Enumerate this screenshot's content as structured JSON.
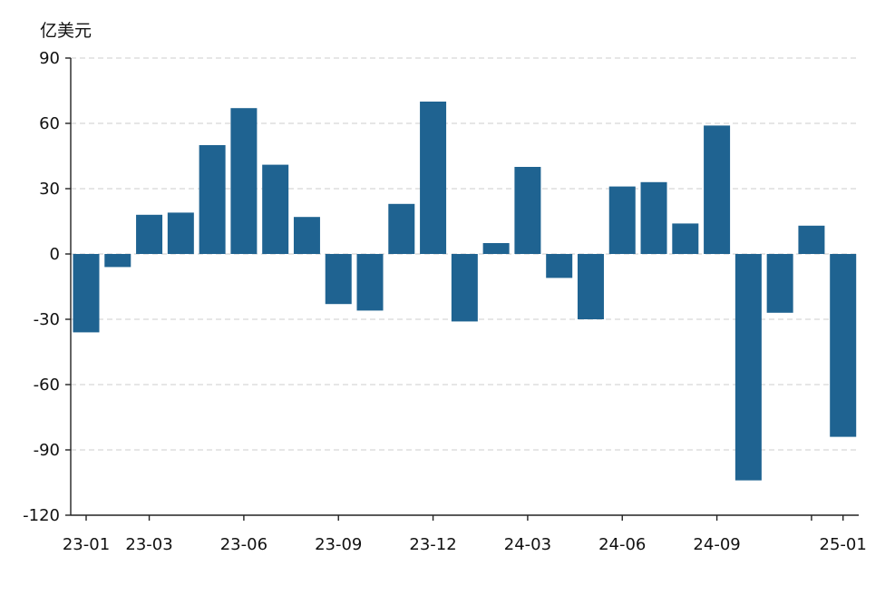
{
  "chart_data": {
    "type": "bar",
    "ylabel": "亿美元",
    "ylim": [
      -120,
      90
    ],
    "yticks": [
      90,
      60,
      30,
      0,
      -30,
      -60,
      -90,
      -120
    ],
    "grid": "horizontal-dashed",
    "bar_color": "#1f6391",
    "categories": [
      "23-01",
      "23-02",
      "23-03",
      "23-04",
      "23-05",
      "23-06",
      "23-07",
      "23-08",
      "23-09",
      "23-10",
      "23-11",
      "23-12",
      "24-01",
      "24-02",
      "24-03",
      "24-04",
      "24-05",
      "24-06",
      "24-07",
      "24-08",
      "24-09",
      "24-10",
      "24-11",
      "24-12",
      "25-01"
    ],
    "values": [
      -36,
      -6,
      18,
      19,
      50,
      67,
      41,
      17,
      -23,
      -26,
      23,
      70,
      -31,
      5,
      40,
      -11,
      -30,
      31,
      33,
      14,
      59,
      -104,
      -27,
      13,
      -84
    ],
    "xtick_labels": [
      "23-01",
      "23-03",
      "23-06",
      "23-09",
      "23-12",
      "24-03",
      "24-06",
      "24-09",
      "25-01"
    ],
    "xtick_values": [
      "23-01",
      "23-03",
      "23-06",
      "23-09",
      "23-12",
      "24-03",
      "24-06",
      "24-09",
      "25-01"
    ],
    "extra_xticks": [
      "24-12"
    ]
  }
}
